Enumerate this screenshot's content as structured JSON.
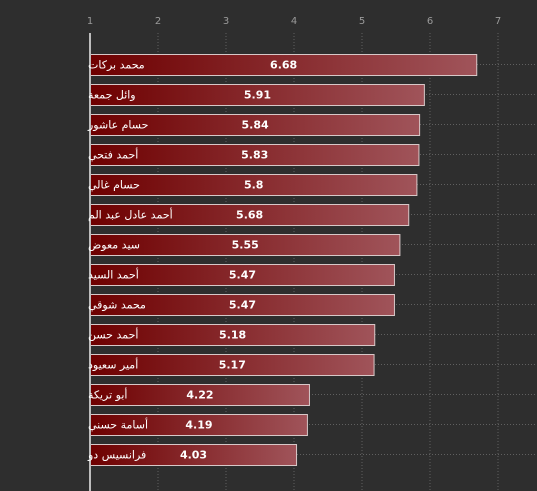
{
  "chart_data": {
    "type": "bar",
    "orientation": "horizontal",
    "title": "",
    "xlabel": "",
    "ylabel": "",
    "xlim": [
      1,
      7
    ],
    "ticks": [
      "1",
      "2",
      "3",
      "4",
      "5",
      "6",
      "7"
    ],
    "grid": true,
    "categories": [
      "محمد بركات",
      "وائل جمعة",
      "حسام عاشور",
      "أحمد فتحي",
      "حسام غالي",
      "أحمد عادل عبد الم",
      "سيد معوض",
      "أحمد السيد",
      "محمد شوقي",
      "أحمد حسن",
      "أمير سعيود",
      "أبو تريكة",
      "أسامة حسني",
      "فرانسيس دو"
    ],
    "values": [
      6.68,
      5.91,
      5.84,
      5.83,
      5.8,
      5.68,
      5.55,
      5.47,
      5.47,
      5.18,
      5.17,
      4.22,
      4.19,
      4.03
    ],
    "value_labels": [
      "6.68",
      "5.91",
      "5.84",
      "5.83",
      "5.8",
      "5.68",
      "5.55",
      "5.47",
      "5.47",
      "5.18",
      "5.17",
      "4.22",
      "4.19",
      "4.03"
    ],
    "colors": {
      "background": "#2e2e2e",
      "bar_start": "#6e0000",
      "bar_end": "#a0545a",
      "bar_border": "#d8c8c8",
      "grid": "#8a8a8a",
      "axis": "#bdbdbd",
      "text": "#ffffff",
      "tick_text": "#9a9a9a"
    }
  }
}
